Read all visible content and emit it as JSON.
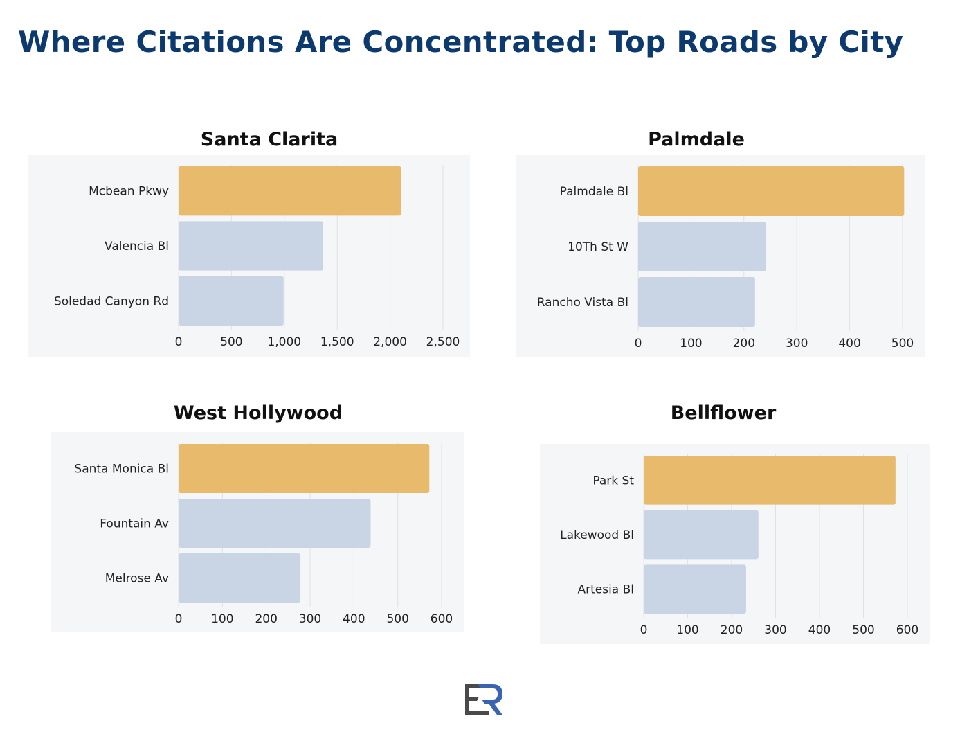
{
  "title": "Where Citations Are Concentrated: Top Roads by City",
  "colors": {
    "highlight": "#e8ba6b",
    "other": "#c9d5e5",
    "panel": "#f4f6f8",
    "grid": "#e0e2e6",
    "title": "#0d3a6e"
  },
  "logo": {
    "text": "ER"
  },
  "chart_data": [
    {
      "type": "bar",
      "orientation": "horizontal",
      "title": "Santa Clarita",
      "categories": [
        "Mcbean Pkwy",
        "Valencia Bl",
        "Soledad Canyon Rd"
      ],
      "values": [
        2105,
        1368,
        993
      ],
      "xlim": [
        0,
        2500
      ],
      "ticks": [
        0,
        500,
        1000,
        1500,
        2000,
        2500
      ],
      "tick_labels": [
        "0",
        "500",
        "1,000",
        "1,500",
        "2,000",
        "2,500"
      ],
      "grid": true
    },
    {
      "type": "bar",
      "orientation": "horizontal",
      "title": "Palmdale",
      "categories": [
        "Palmdale Bl",
        "10Th St W",
        "Rancho Vista Bl"
      ],
      "values": [
        503,
        242,
        221
      ],
      "xlim": [
        0,
        500
      ],
      "ticks": [
        0,
        100,
        200,
        300,
        400,
        500
      ],
      "tick_labels": [
        "0",
        "100",
        "200",
        "300",
        "400",
        "500"
      ],
      "grid": true
    },
    {
      "type": "bar",
      "orientation": "horizontal",
      "title": "West Hollywood",
      "categories": [
        "Santa Monica Bl",
        "Fountain Av",
        "Melrose Av"
      ],
      "values": [
        572,
        438,
        278
      ],
      "xlim": [
        0,
        600
      ],
      "ticks": [
        0,
        100,
        200,
        300,
        400,
        500,
        600
      ],
      "tick_labels": [
        "0",
        "100",
        "200",
        "300",
        "400",
        "500",
        "600"
      ],
      "grid": true
    },
    {
      "type": "bar",
      "orientation": "horizontal",
      "title": "Bellflower",
      "categories": [
        "Park St",
        "Lakewood Bl",
        "Artesia Bl"
      ],
      "values": [
        573,
        261,
        233
      ],
      "xlim": [
        0,
        600
      ],
      "ticks": [
        0,
        100,
        200,
        300,
        400,
        500,
        600
      ],
      "tick_labels": [
        "0",
        "100",
        "200",
        "300",
        "400",
        "500",
        "600"
      ],
      "grid": true
    }
  ]
}
